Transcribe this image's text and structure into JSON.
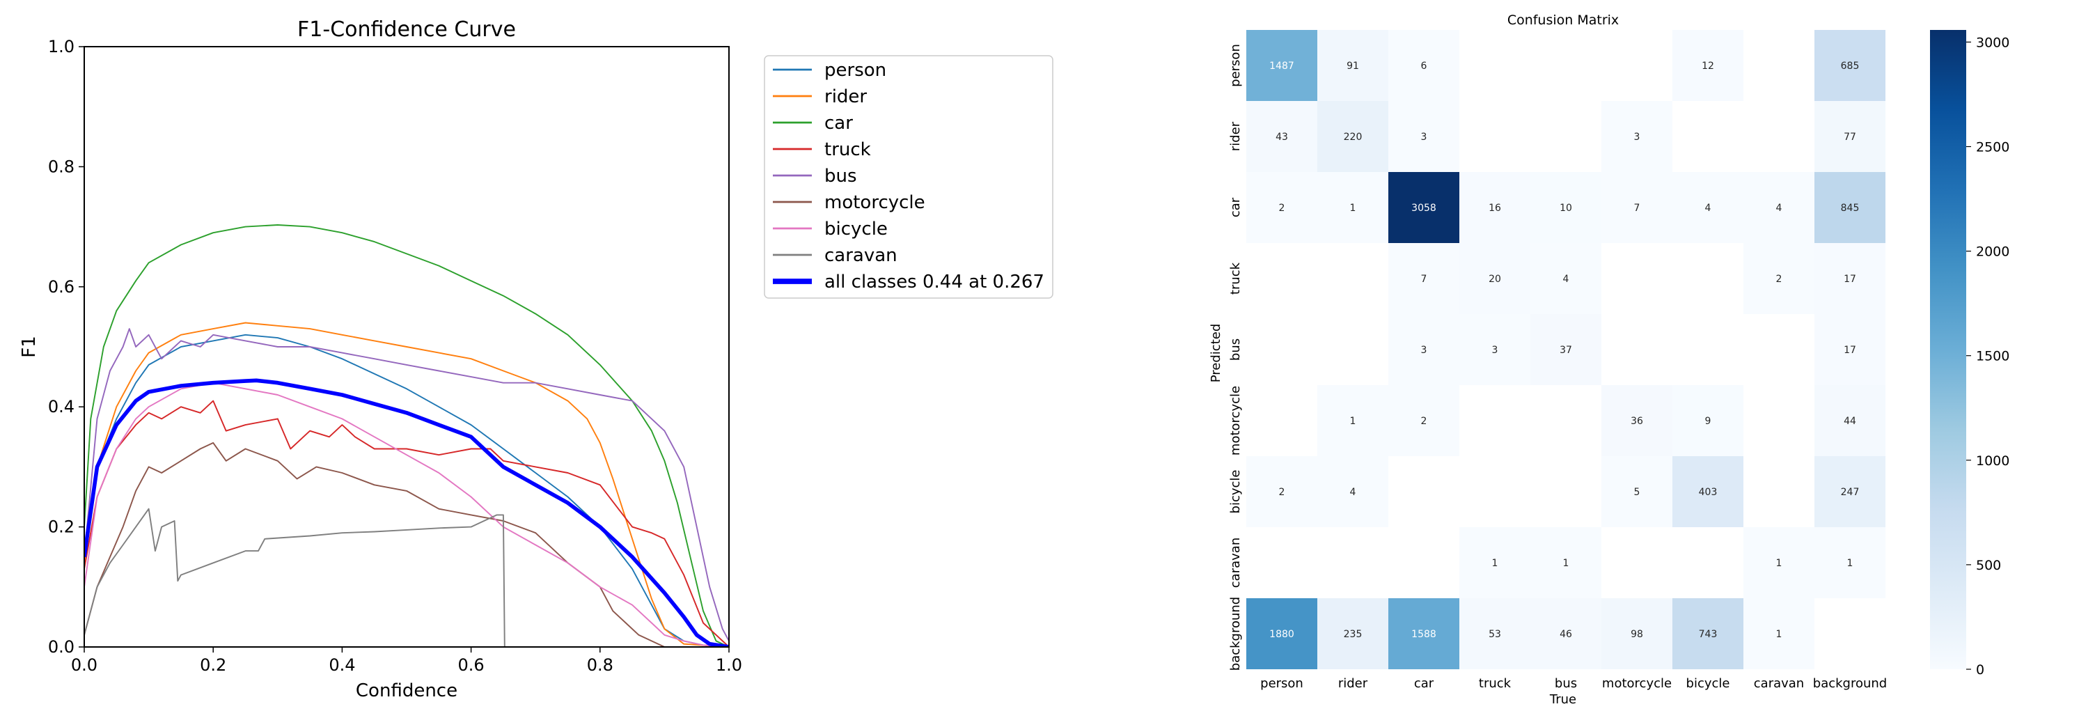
{
  "chart_data": [
    {
      "type": "line",
      "title": "F1-Confidence Curve",
      "xlabel": "Confidence",
      "ylabel": "F1",
      "xlim": [
        0,
        1
      ],
      "ylim": [
        0,
        1
      ],
      "x_ticks": [
        "0.0",
        "0.2",
        "0.4",
        "0.6",
        "0.8",
        "1.0"
      ],
      "y_ticks": [
        "0.0",
        "0.2",
        "0.4",
        "0.6",
        "0.8",
        "1.0"
      ],
      "grid": false,
      "legend_position": "outside-right",
      "series": [
        {
          "name": "person",
          "color": "#1f77b4",
          "line_width": 1.2,
          "x": [
            0,
            0.02,
            0.05,
            0.08,
            0.1,
            0.15,
            0.2,
            0.25,
            0.3,
            0.35,
            0.4,
            0.45,
            0.5,
            0.55,
            0.6,
            0.65,
            0.7,
            0.75,
            0.8,
            0.85,
            0.88,
            0.9,
            0.93,
            0.96,
            1.0
          ],
          "y": [
            0.15,
            0.3,
            0.38,
            0.44,
            0.47,
            0.5,
            0.51,
            0.52,
            0.515,
            0.5,
            0.48,
            0.455,
            0.43,
            0.4,
            0.37,
            0.33,
            0.29,
            0.25,
            0.2,
            0.13,
            0.07,
            0.03,
            0.01,
            0.003,
            0
          ]
        },
        {
          "name": "rider",
          "color": "#ff7f0e",
          "line_width": 1.2,
          "x": [
            0,
            0.02,
            0.05,
            0.08,
            0.1,
            0.15,
            0.2,
            0.25,
            0.3,
            0.35,
            0.4,
            0.45,
            0.5,
            0.55,
            0.6,
            0.65,
            0.7,
            0.75,
            0.78,
            0.8,
            0.82,
            0.85,
            0.88,
            0.9,
            0.93,
            1.0
          ],
          "y": [
            0.14,
            0.3,
            0.4,
            0.46,
            0.49,
            0.52,
            0.53,
            0.54,
            0.535,
            0.53,
            0.52,
            0.51,
            0.5,
            0.49,
            0.48,
            0.46,
            0.44,
            0.41,
            0.38,
            0.34,
            0.28,
            0.18,
            0.08,
            0.03,
            0.005,
            0
          ]
        },
        {
          "name": "car",
          "color": "#2ca02c",
          "line_width": 1.2,
          "x": [
            0,
            0.01,
            0.03,
            0.05,
            0.08,
            0.1,
            0.15,
            0.2,
            0.25,
            0.3,
            0.35,
            0.4,
            0.45,
            0.5,
            0.55,
            0.6,
            0.65,
            0.7,
            0.75,
            0.8,
            0.85,
            0.88,
            0.9,
            0.92,
            0.94,
            0.96,
            0.98,
            1.0
          ],
          "y": [
            0.2,
            0.38,
            0.5,
            0.56,
            0.61,
            0.64,
            0.67,
            0.69,
            0.7,
            0.703,
            0.7,
            0.69,
            0.675,
            0.655,
            0.635,
            0.61,
            0.585,
            0.555,
            0.52,
            0.47,
            0.41,
            0.36,
            0.31,
            0.24,
            0.15,
            0.06,
            0.01,
            0
          ]
        },
        {
          "name": "truck",
          "color": "#d62728",
          "line_width": 1.2,
          "x": [
            0,
            0.02,
            0.05,
            0.08,
            0.1,
            0.12,
            0.15,
            0.18,
            0.2,
            0.22,
            0.25,
            0.3,
            0.32,
            0.35,
            0.38,
            0.4,
            0.42,
            0.45,
            0.5,
            0.55,
            0.6,
            0.63,
            0.65,
            0.7,
            0.75,
            0.8,
            0.85,
            0.88,
            0.9,
            0.93,
            0.96,
            1.0
          ],
          "y": [
            0.13,
            0.25,
            0.33,
            0.37,
            0.39,
            0.38,
            0.4,
            0.39,
            0.41,
            0.36,
            0.37,
            0.38,
            0.33,
            0.36,
            0.35,
            0.37,
            0.35,
            0.33,
            0.33,
            0.32,
            0.33,
            0.33,
            0.31,
            0.3,
            0.29,
            0.27,
            0.2,
            0.19,
            0.18,
            0.12,
            0.04,
            0
          ]
        },
        {
          "name": "bus",
          "color": "#9467bd",
          "line_width": 1.2,
          "x": [
            0,
            0.02,
            0.04,
            0.06,
            0.07,
            0.08,
            0.1,
            0.12,
            0.15,
            0.18,
            0.2,
            0.25,
            0.3,
            0.35,
            0.4,
            0.45,
            0.5,
            0.55,
            0.6,
            0.65,
            0.7,
            0.75,
            0.8,
            0.85,
            0.9,
            0.93,
            0.95,
            0.97,
            0.99,
            1.0
          ],
          "y": [
            0.15,
            0.38,
            0.46,
            0.5,
            0.53,
            0.5,
            0.52,
            0.48,
            0.51,
            0.5,
            0.52,
            0.51,
            0.5,
            0.5,
            0.49,
            0.48,
            0.47,
            0.46,
            0.45,
            0.44,
            0.44,
            0.43,
            0.42,
            0.41,
            0.36,
            0.3,
            0.2,
            0.1,
            0.03,
            0.01
          ]
        },
        {
          "name": "motorcycle",
          "color": "#8c564b",
          "line_width": 1.2,
          "x": [
            0,
            0.02,
            0.04,
            0.06,
            0.08,
            0.1,
            0.12,
            0.15,
            0.18,
            0.2,
            0.22,
            0.25,
            0.3,
            0.33,
            0.36,
            0.4,
            0.45,
            0.5,
            0.55,
            0.6,
            0.65,
            0.7,
            0.75,
            0.8,
            0.82,
            0.84,
            0.86,
            0.88,
            0.9,
            1.0
          ],
          "y": [
            0.02,
            0.1,
            0.15,
            0.2,
            0.26,
            0.3,
            0.29,
            0.31,
            0.33,
            0.34,
            0.31,
            0.33,
            0.31,
            0.28,
            0.3,
            0.29,
            0.27,
            0.26,
            0.23,
            0.22,
            0.21,
            0.19,
            0.14,
            0.1,
            0.06,
            0.04,
            0.02,
            0.01,
            0,
            0
          ]
        },
        {
          "name": "bicycle",
          "color": "#e377c2",
          "line_width": 1.2,
          "x": [
            0,
            0.02,
            0.05,
            0.08,
            0.1,
            0.15,
            0.2,
            0.25,
            0.3,
            0.35,
            0.4,
            0.45,
            0.5,
            0.55,
            0.6,
            0.65,
            0.7,
            0.75,
            0.8,
            0.85,
            0.88,
            0.9,
            0.93,
            0.96,
            1.0
          ],
          "y": [
            0.1,
            0.25,
            0.33,
            0.38,
            0.4,
            0.43,
            0.44,
            0.43,
            0.42,
            0.4,
            0.38,
            0.35,
            0.32,
            0.29,
            0.25,
            0.2,
            0.17,
            0.14,
            0.1,
            0.07,
            0.04,
            0.02,
            0.01,
            0.003,
            0
          ]
        },
        {
          "name": "caravan",
          "color": "#7f7f7f",
          "line_width": 1.2,
          "x": [
            0,
            0.02,
            0.04,
            0.06,
            0.08,
            0.1,
            0.11,
            0.12,
            0.14,
            0.145,
            0.15,
            0.2,
            0.25,
            0.27,
            0.28,
            0.35,
            0.4,
            0.45,
            0.5,
            0.55,
            0.6,
            0.62,
            0.64,
            0.65,
            0.652,
            0.653,
            0.66,
            0.7,
            0.8,
            0.9,
            1.0
          ],
          "y": [
            0.02,
            0.1,
            0.14,
            0.17,
            0.2,
            0.23,
            0.16,
            0.2,
            0.21,
            0.11,
            0.12,
            0.14,
            0.16,
            0.16,
            0.18,
            0.185,
            0.19,
            0.192,
            0.195,
            0.198,
            0.2,
            0.21,
            0.22,
            0.22,
            0,
            0,
            0,
            0,
            0,
            0,
            0
          ]
        },
        {
          "name": "all classes 0.44 at 0.267",
          "color": "#0000ff",
          "line_width": 3.5,
          "x": [
            0,
            0.02,
            0.05,
            0.08,
            0.1,
            0.15,
            0.2,
            0.25,
            0.267,
            0.3,
            0.35,
            0.4,
            0.45,
            0.5,
            0.55,
            0.6,
            0.65,
            0.7,
            0.75,
            0.8,
            0.85,
            0.9,
            0.93,
            0.95,
            0.97,
            1.0
          ],
          "y": [
            0.15,
            0.3,
            0.37,
            0.41,
            0.425,
            0.435,
            0.44,
            0.443,
            0.444,
            0.44,
            0.43,
            0.42,
            0.405,
            0.39,
            0.37,
            0.35,
            0.3,
            0.27,
            0.24,
            0.2,
            0.15,
            0.09,
            0.05,
            0.02,
            0.005,
            0
          ]
        }
      ]
    },
    {
      "type": "heatmap",
      "title": "Confusion Matrix",
      "xlabel": "True",
      "ylabel": "Predicted",
      "categories": [
        "person",
        "rider",
        "car",
        "truck",
        "bus",
        "motorcycle",
        "bicycle",
        "caravan",
        "background"
      ],
      "values": [
        [
          1487,
          91,
          6,
          null,
          null,
          null,
          12,
          null,
          685
        ],
        [
          43,
          220,
          3,
          null,
          null,
          3,
          null,
          null,
          77
        ],
        [
          2,
          1,
          3058,
          16,
          10,
          7,
          4,
          4,
          845
        ],
        [
          null,
          null,
          7,
          20,
          4,
          null,
          null,
          2,
          17
        ],
        [
          null,
          null,
          3,
          3,
          37,
          null,
          null,
          null,
          17
        ],
        [
          null,
          1,
          2,
          null,
          null,
          36,
          9,
          null,
          44
        ],
        [
          2,
          4,
          null,
          null,
          null,
          5,
          403,
          null,
          247
        ],
        [
          null,
          null,
          null,
          1,
          1,
          null,
          null,
          1,
          1
        ],
        [
          1880,
          235,
          1588,
          53,
          46,
          98,
          743,
          1,
          null
        ]
      ],
      "colorbar": {
        "min": 0,
        "max": 3058,
        "ticks": [
          "0",
          "500",
          "1000",
          "1500",
          "2000",
          "2500",
          "3000"
        ],
        "tick_values": [
          0,
          500,
          1000,
          1500,
          2000,
          2500,
          3000
        ]
      },
      "colormap": "Blues"
    }
  ]
}
